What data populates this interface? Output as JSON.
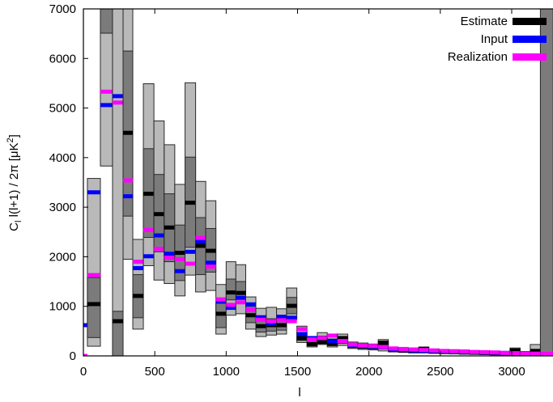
{
  "chart_data": {
    "type": "bar",
    "title": "",
    "xlabel": "l",
    "ylabel_parts": {
      "c": "C",
      "sub": "l",
      "mid": " l(l+1) / 2π [μK",
      "sup": "2",
      "end": "]"
    },
    "xlim": [
      0,
      3290
    ],
    "ylim": [
      0,
      7000
    ],
    "xticks": [
      0,
      500,
      1000,
      1500,
      2000,
      2500,
      3000
    ],
    "yticks": [
      0,
      1000,
      2000,
      3000,
      4000,
      5000,
      6000,
      7000
    ],
    "legend_position": "top-right",
    "legend": [
      {
        "key": "est",
        "label": "Estimate",
        "color": "#000000"
      },
      {
        "key": "input",
        "label": "Input",
        "color": "#0000ff"
      },
      {
        "key": "real",
        "label": "Realization",
        "color": "#ff00ff"
      }
    ],
    "colors": {
      "band2": "#b9b9b9",
      "band1": "#7b7b7b",
      "stroke": "#2a2a2a"
    },
    "bin_fields": [
      "lmin",
      "lmax",
      "lo2",
      "lo1",
      "hi1",
      "hi2",
      "est",
      "input",
      "real"
    ],
    "bins": [
      [
        0,
        28,
        0,
        0,
        0,
        0,
        null,
        620,
        0
      ],
      [
        28,
        119,
        195,
        370,
        1580,
        3580,
        1045,
        3300,
        1630
      ],
      [
        119,
        204,
        3830,
        6510,
        9000,
        9000,
        null,
        5060,
        5330
      ],
      [
        204,
        278,
        0,
        0,
        900,
        9000,
        700,
        5240,
        5110
      ],
      [
        278,
        346,
        1950,
        2820,
        6150,
        9000,
        4500,
        3220,
        3540
      ],
      [
        346,
        420,
        540,
        770,
        1640,
        2350,
        1210,
        1770,
        1900
      ],
      [
        420,
        494,
        1820,
        2390,
        4180,
        5490,
        3270,
        2010,
        2540
      ],
      [
        494,
        566,
        1530,
        2100,
        3660,
        4740,
        2860,
        2430,
        2160
      ],
      [
        566,
        640,
        1460,
        1900,
        3270,
        4260,
        2590,
        2060,
        1980
      ],
      [
        640,
        712,
        1210,
        1520,
        2640,
        3460,
        2080,
        1710,
        1950
      ],
      [
        712,
        786,
        1630,
        2190,
        4010,
        5510,
        3090,
        2100,
        1860
      ],
      [
        786,
        857,
        1290,
        1640,
        2790,
        3520,
        2220,
        2300,
        2380
      ],
      [
        857,
        928,
        1320,
        1690,
        2570,
        3130,
        2120,
        1880,
        1800
      ],
      [
        928,
        1000,
        440,
        570,
        1060,
        1440,
        850,
        1100,
        1140
      ],
      [
        1000,
        1068,
        820,
        1130,
        1550,
        1900,
        1280,
        970,
        1030
      ],
      [
        1068,
        1137,
        850,
        1190,
        1500,
        1840,
        1270,
        1170,
        1080
      ],
      [
        1137,
        1208,
        540,
        670,
        1000,
        1190,
        820,
        1040,
        930
      ],
      [
        1208,
        1281,
        390,
        480,
        780,
        960,
        600,
        780,
        730
      ],
      [
        1281,
        1353,
        420,
        500,
        750,
        980,
        620,
        650,
        700
      ],
      [
        1353,
        1423,
        440,
        520,
        720,
        950,
        620,
        790,
        720
      ],
      [
        1423,
        1495,
        730,
        850,
        1180,
        1370,
        1010,
        770,
        700
      ],
      [
        1495,
        1566,
        270,
        310,
        470,
        600,
        360,
        440,
        540
      ],
      [
        1566,
        1638,
        180,
        200,
        320,
        390,
        240,
        360,
        330
      ],
      [
        1638,
        1708,
        230,
        260,
        400,
        470,
        280,
        360,
        360
      ],
      [
        1708,
        1780,
        180,
        210,
        340,
        440,
        240,
        300,
        410
      ],
      [
        1780,
        1852,
        210,
        250,
        390,
        440,
        360,
        300,
        300
      ],
      [
        1852,
        1923,
        150,
        170,
        240,
        280,
        200,
        210,
        230
      ],
      [
        1923,
        1994,
        130,
        150,
        230,
        260,
        190,
        200,
        210
      ],
      [
        1994,
        2065,
        120,
        140,
        210,
        240,
        180,
        190,
        200
      ],
      [
        2065,
        2136,
        100,
        150,
        300,
        330,
        260,
        170,
        180
      ],
      [
        2136,
        2207,
        80,
        100,
        150,
        170,
        120,
        130,
        150
      ],
      [
        2207,
        2278,
        70,
        90,
        140,
        160,
        110,
        120,
        140
      ],
      [
        2278,
        2349,
        60,
        80,
        130,
        150,
        100,
        110,
        130
      ],
      [
        2349,
        2420,
        60,
        80,
        160,
        180,
        140,
        100,
        120
      ],
      [
        2420,
        2491,
        50,
        70,
        120,
        140,
        90,
        95,
        110
      ],
      [
        2491,
        2562,
        45,
        60,
        110,
        130,
        80,
        90,
        100
      ],
      [
        2562,
        2633,
        40,
        55,
        100,
        120,
        75,
        85,
        95
      ],
      [
        2633,
        2704,
        35,
        50,
        95,
        110,
        70,
        80,
        90
      ],
      [
        2704,
        2775,
        30,
        45,
        90,
        105,
        65,
        75,
        80
      ],
      [
        2775,
        2846,
        25,
        40,
        85,
        100,
        60,
        70,
        75
      ],
      [
        2846,
        2917,
        20,
        35,
        80,
        95,
        55,
        65,
        70
      ],
      [
        2917,
        2988,
        15,
        30,
        75,
        90,
        50,
        60,
        60
      ],
      [
        2988,
        3059,
        10,
        30,
        130,
        160,
        110,
        55,
        55
      ],
      [
        3059,
        3130,
        10,
        25,
        70,
        90,
        45,
        50,
        50
      ],
      [
        3130,
        3201,
        65,
        80,
        120,
        230,
        100,
        45,
        45
      ],
      [
        3201,
        3290,
        0,
        0,
        9000,
        9000,
        null,
        40,
        40
      ]
    ]
  }
}
